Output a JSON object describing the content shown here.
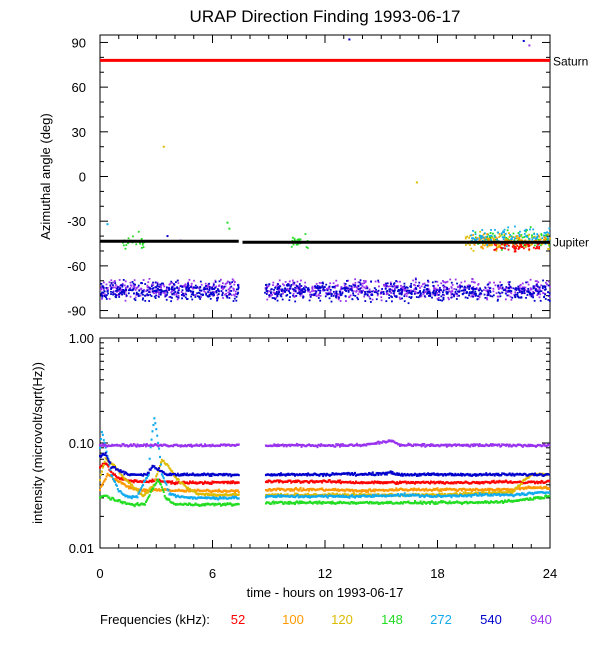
{
  "title": "URAP Direction Finding  1993-06-17",
  "chart_data": [
    {
      "type": "scatter",
      "ylabel": "Azimuthal angle (deg)",
      "xlim": [
        0,
        24
      ],
      "ylim": [
        -95,
        95
      ],
      "yticks": [
        90,
        60,
        30,
        0,
        -30,
        -60,
        -90
      ],
      "reference_lines": [
        {
          "name": "Saturn",
          "y": 78,
          "color": "#ff0000"
        },
        {
          "name": "Jupiter",
          "y": -43.5,
          "color": "#000000"
        }
      ],
      "data_gap": [
        7.4,
        8.8
      ],
      "clusters": [
        {
          "freq": "940",
          "x_range": [
            0,
            24
          ],
          "y_center": -76,
          "y_spread": 9
        },
        {
          "freq": "540",
          "x_range": [
            0,
            24
          ],
          "y_center": -77,
          "y_spread": 9
        },
        {
          "freq": "148",
          "x_range": [
            1.2,
            2.4
          ],
          "y_center": -44,
          "y_spread": 9
        },
        {
          "freq": "148",
          "x_range": [
            10.2,
            11.1
          ],
          "y_center": -43,
          "y_spread": 8
        },
        {
          "freq": "148",
          "x_range": [
            20,
            24
          ],
          "y_center": -42,
          "y_spread": 9
        },
        {
          "freq": "120",
          "x_range": [
            19.5,
            24
          ],
          "y_center": -44,
          "y_spread": 8
        },
        {
          "freq": "100",
          "x_range": [
            19.8,
            23.8
          ],
          "y_center": -44,
          "y_spread": 7
        },
        {
          "freq": "272",
          "x_range": [
            19.8,
            24
          ],
          "y_center": -40,
          "y_spread": 9
        },
        {
          "freq": "52",
          "x_range": [
            21,
            23.5
          ],
          "y_center": -47,
          "y_spread": 5
        }
      ],
      "isolated_points": [
        {
          "x": 13.3,
          "y": 92,
          "freq": "540"
        },
        {
          "x": 22.6,
          "y": 91,
          "freq": "540"
        },
        {
          "x": 22.9,
          "y": 88,
          "freq": "940"
        },
        {
          "x": 3.4,
          "y": 20,
          "freq": "120"
        },
        {
          "x": 16.9,
          "y": -4,
          "freq": "120"
        },
        {
          "x": 0.4,
          "y": -32,
          "freq": "272"
        },
        {
          "x": 6.8,
          "y": -31,
          "freq": "148"
        },
        {
          "x": 6.9,
          "y": -35,
          "freq": "148"
        },
        {
          "x": 3.6,
          "y": -40,
          "freq": "540"
        },
        {
          "x": 4.3,
          "y": -43,
          "freq": "940"
        }
      ]
    },
    {
      "type": "line",
      "ylabel": "intensity (microvolt/sqrt(Hz))",
      "xlabel": "time - hours on 1993-06-17",
      "yscale": "log",
      "xlim": [
        0,
        24
      ],
      "ylim": [
        0.01,
        1
      ],
      "xticks": [
        0,
        6,
        12,
        18,
        24
      ],
      "yticks": [
        1,
        0.1,
        0.01
      ],
      "ytick_labels": [
        "1.00",
        "0.10",
        "0.01"
      ],
      "data_gap": [
        7.4,
        8.8
      ],
      "series": [
        {
          "name": "52",
          "color": "#ff0000",
          "x": [
            0,
            0.3,
            0.6,
            1,
            1.5,
            2,
            2.5,
            3,
            3.4,
            3.8,
            4.2,
            5,
            6,
            7.3,
            8.9,
            10,
            12,
            14,
            16,
            18,
            20,
            21.5,
            22.5,
            24
          ],
          "values": [
            0.06,
            0.065,
            0.052,
            0.046,
            0.044,
            0.043,
            0.043,
            0.044,
            0.043,
            0.042,
            0.042,
            0.042,
            0.042,
            0.042,
            0.043,
            0.043,
            0.043,
            0.042,
            0.042,
            0.042,
            0.042,
            0.043,
            0.042,
            0.043
          ]
        },
        {
          "name": "100",
          "color": "#ff9900",
          "x": [
            0,
            0.4,
            0.8,
            1.5,
            2,
            2.5,
            3,
            3.5,
            4,
            5,
            6,
            7.3,
            8.9,
            10,
            12,
            14,
            16,
            18,
            20,
            22,
            23,
            24
          ],
          "values": [
            0.036,
            0.05,
            0.045,
            0.038,
            0.036,
            0.035,
            0.036,
            0.036,
            0.035,
            0.035,
            0.035,
            0.035,
            0.036,
            0.036,
            0.036,
            0.035,
            0.036,
            0.036,
            0.036,
            0.036,
            0.038,
            0.037
          ]
        },
        {
          "name": "120",
          "color": "#ddbb00",
          "x": [
            0,
            0.3,
            0.8,
            1.2,
            1.8,
            2.3,
            2.9,
            3.3,
            3.6,
            4,
            4.6,
            5.2,
            6,
            7.3,
            8.9,
            10,
            12,
            14,
            16,
            18,
            20,
            22,
            23,
            24
          ],
          "values": [
            0.045,
            0.07,
            0.06,
            0.048,
            0.038,
            0.031,
            0.04,
            0.068,
            0.062,
            0.047,
            0.038,
            0.033,
            0.032,
            0.032,
            0.032,
            0.032,
            0.032,
            0.032,
            0.032,
            0.032,
            0.033,
            0.034,
            0.05,
            0.05
          ]
        },
        {
          "name": "148",
          "color": "#22dd22",
          "x": [
            0,
            0.2,
            0.7,
            1.2,
            1.8,
            2.4,
            2.8,
            3.1,
            3.5,
            4,
            5,
            6,
            7.3,
            8.9,
            10,
            12,
            14,
            16,
            18,
            20,
            22,
            24
          ],
          "values": [
            0.03,
            0.032,
            0.029,
            0.027,
            0.026,
            0.026,
            0.036,
            0.045,
            0.03,
            0.026,
            0.026,
            0.026,
            0.026,
            0.027,
            0.027,
            0.027,
            0.027,
            0.027,
            0.027,
            0.027,
            0.028,
            0.031
          ]
        },
        {
          "name": "272",
          "color": "#11aaee",
          "x": [
            0,
            0.1,
            0.3,
            0.6,
            1,
            1.5,
            2,
            2.6,
            2.9,
            3.1,
            3.3,
            3.7,
            4.2,
            5,
            6,
            7.3,
            8.9,
            10,
            12,
            14,
            16,
            18,
            20,
            22,
            24
          ],
          "values": [
            0.09,
            0.13,
            0.09,
            0.05,
            0.035,
            0.03,
            0.031,
            0.05,
            0.17,
            0.1,
            0.05,
            0.033,
            0.031,
            0.03,
            0.03,
            0.03,
            0.031,
            0.031,
            0.031,
            0.031,
            0.032,
            0.031,
            0.032,
            0.032,
            0.034
          ]
        },
        {
          "name": "540",
          "color": "#0000cc",
          "x": [
            0,
            0.3,
            0.6,
            1,
            1.5,
            2,
            2.5,
            2.8,
            3.2,
            3.6,
            4,
            5,
            6,
            7.3,
            8.9,
            10,
            12,
            13,
            14,
            15.5,
            16,
            18,
            20,
            22,
            24
          ],
          "values": [
            0.075,
            0.08,
            0.06,
            0.055,
            0.05,
            0.05,
            0.05,
            0.06,
            0.055,
            0.05,
            0.05,
            0.05,
            0.05,
            0.05,
            0.05,
            0.05,
            0.05,
            0.051,
            0.05,
            0.052,
            0.05,
            0.05,
            0.05,
            0.05,
            0.05
          ]
        },
        {
          "name": "940",
          "color": "#9933ee",
          "x": [
            0,
            2,
            4,
            6,
            7.3,
            8.9,
            10,
            12,
            14,
            15.6,
            16,
            18,
            20,
            22,
            24
          ],
          "values": [
            0.096,
            0.095,
            0.095,
            0.095,
            0.095,
            0.095,
            0.095,
            0.095,
            0.095,
            0.105,
            0.095,
            0.095,
            0.095,
            0.095,
            0.095
          ]
        }
      ]
    }
  ],
  "legend_label": "Frequencies (kHz):",
  "frequencies": [
    {
      "label": "52",
      "color": "#ff0000"
    },
    {
      "label": "100",
      "color": "#ff9900"
    },
    {
      "label": "120",
      "color": "#ddbb00"
    },
    {
      "label": "148",
      "color": "#22dd22"
    },
    {
      "label": "272",
      "color": "#11aaee"
    },
    {
      "label": "540",
      "color": "#0000cc"
    },
    {
      "label": "940",
      "color": "#9933ee"
    }
  ]
}
